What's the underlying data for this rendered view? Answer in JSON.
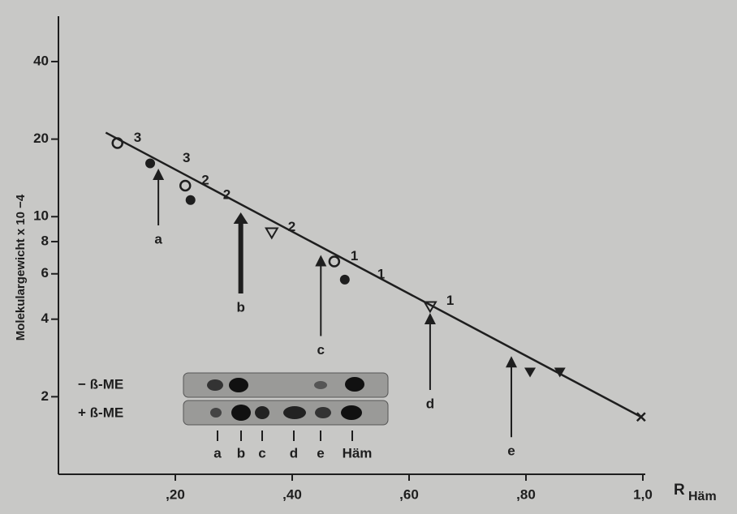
{
  "chart_data": {
    "type": "scatter",
    "ylabel": "Molekulargewicht x 10 −4",
    "xlabel": "R",
    "xlabel_sub": "Häm",
    "xlim": [
      0,
      1.0
    ],
    "ylim": [
      1,
      60
    ],
    "ylog": true,
    "xticks": [
      {
        "value": 0.2,
        "label": ",20"
      },
      {
        "value": 0.4,
        "label": ",40"
      },
      {
        "value": 0.6,
        "label": ",60"
      },
      {
        "value": 0.8,
        "label": ",80"
      },
      {
        "value": 1.0,
        "label": "1,0"
      }
    ],
    "yticks": [
      2,
      4,
      6,
      8,
      10,
      20,
      40
    ],
    "color": "#1e1e1e",
    "series": [
      {
        "marker": "open-circle",
        "x": [
          0.101,
          0.217,
          0.472
        ],
        "values": [
          19.3,
          13.2,
          6.7
        ],
        "labels": [
          "3",
          "2",
          "1"
        ]
      },
      {
        "marker": "filled-circle",
        "x": [
          0.157,
          0.226,
          0.49
        ],
        "values": [
          16.1,
          11.6,
          5.7
        ],
        "labels": [
          "3",
          "2",
          "1"
        ]
      },
      {
        "marker": "open-triangle",
        "x": [
          0.365,
          0.636
        ],
        "values": [
          8.7,
          4.5
        ],
        "labels": [
          "2",
          "1"
        ]
      },
      {
        "marker": "filled-triangle",
        "x": [
          0.807,
          0.858
        ],
        "values": [
          2.5,
          2.5
        ]
      },
      {
        "marker": "cross",
        "x": [
          0.997
        ],
        "values": [
          1.67
        ]
      }
    ],
    "fit_line": {
      "x": [
        0.081,
        0.997
      ],
      "values": [
        21.2,
        1.67
      ]
    },
    "arrows": [
      {
        "label": "a",
        "x": 0.171
      },
      {
        "label": "b",
        "x": 0.312
      },
      {
        "label": "c",
        "x": 0.449
      },
      {
        "label": "d",
        "x": 0.636
      },
      {
        "label": "e",
        "x": 0.775
      }
    ],
    "gel": {
      "rows": [
        "− ß-ME",
        "+ ß-ME"
      ],
      "lanes": [
        "a",
        "b",
        "c",
        "d",
        "e",
        "Häm"
      ]
    }
  }
}
